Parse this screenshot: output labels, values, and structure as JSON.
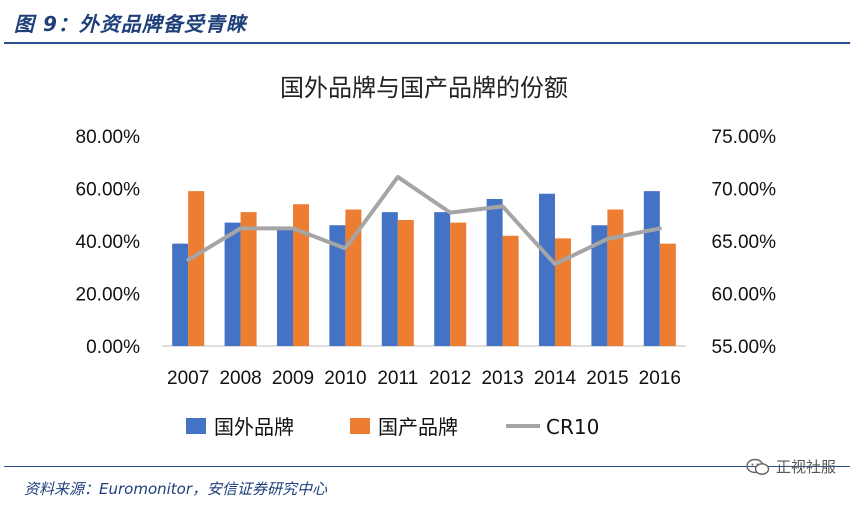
{
  "figure": {
    "title": "图 9：外资品牌备受青睐",
    "source": "资料来源：Euromonitor，安信证券研究中心",
    "watermark": "正视社服"
  },
  "chart_data": {
    "type": "bar",
    "title": "国外品牌与国产品牌的份额",
    "categories": [
      "2007",
      "2008",
      "2009",
      "2010",
      "2011",
      "2012",
      "2013",
      "2014",
      "2015",
      "2016"
    ],
    "series": [
      {
        "name": "国外品牌",
        "kind": "bar",
        "axis": "left",
        "color": "#4472c4",
        "values": [
          0.39,
          0.47,
          0.45,
          0.46,
          0.51,
          0.51,
          0.56,
          0.58,
          0.46,
          0.59
        ]
      },
      {
        "name": "国产品牌",
        "kind": "bar",
        "axis": "left",
        "color": "#ed7d31",
        "values": [
          0.59,
          0.51,
          0.54,
          0.52,
          0.48,
          0.47,
          0.42,
          0.41,
          0.52,
          0.39
        ]
      },
      {
        "name": "CR10",
        "kind": "line",
        "axis": "right",
        "color": "#a5a5a5",
        "values": [
          0.632,
          0.662,
          0.662,
          0.643,
          0.711,
          0.677,
          0.683,
          0.628,
          0.652,
          0.662
        ]
      }
    ],
    "y_left": {
      "lim": [
        0,
        0.8
      ],
      "ticks": [
        "0.00%",
        "20.00%",
        "40.00%",
        "60.00%",
        "80.00%"
      ]
    },
    "y_right": {
      "lim": [
        0.55,
        0.75
      ],
      "ticks": [
        "55.00%",
        "60.00%",
        "65.00%",
        "70.00%",
        "75.00%"
      ]
    },
    "legend": "bottom",
    "grid": false
  }
}
